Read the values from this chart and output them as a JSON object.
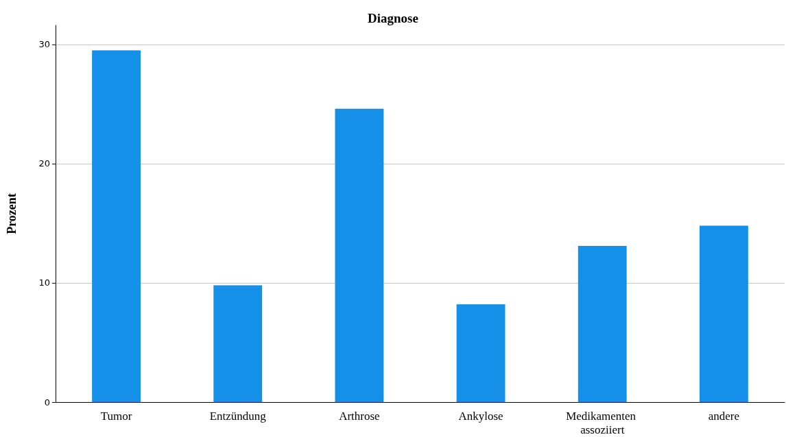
{
  "chart_data": {
    "type": "bar",
    "title": "Diagnose",
    "ylabel": "Prozent",
    "categories": [
      "Tumor",
      "Entzündung",
      "Arthrose",
      "Ankylose",
      "Medikamenten assoziiert",
      "andere"
    ],
    "values": [
      29.5,
      9.8,
      24.6,
      8.2,
      13.1,
      14.8
    ],
    "color": "#1490e8",
    "ylim": [
      0,
      31.6
    ],
    "yticks": [
      0,
      10,
      20,
      30
    ],
    "grid": "y"
  }
}
